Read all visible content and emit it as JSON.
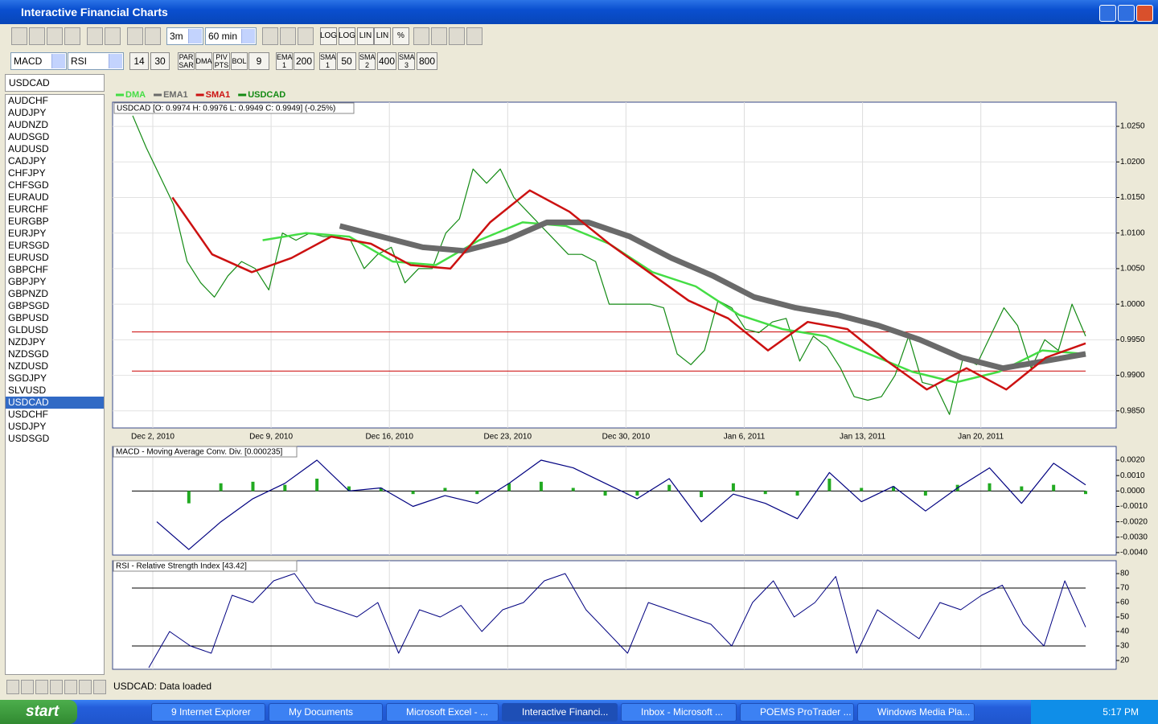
{
  "window": {
    "title": "Interactive Financial Charts"
  },
  "toolbar": {
    "period": "3m",
    "interval": "60 min",
    "icon_labels": [
      "LOG",
      "LOG",
      "LIN",
      "LIN",
      "%"
    ],
    "indicator1": "MACD",
    "indicator2": "RSI",
    "rsi_low": 14,
    "rsi_high": 30,
    "overlays": [
      "PAR SAR",
      "DMA",
      "PIV PTS",
      "BOL"
    ],
    "bol_period": 9,
    "averages": [
      {
        "label": "EMA 1",
        "period": 200
      },
      {
        "label": "SMA 1",
        "period": 50
      },
      {
        "label": "SMA 2",
        "period": 400
      },
      {
        "label": "SMA 3",
        "period": 800
      }
    ]
  },
  "symbols": {
    "current": "USDCAD",
    "list": [
      "AUDCHF",
      "AUDJPY",
      "AUDNZD",
      "AUDSGD",
      "AUDUSD",
      "CADJPY",
      "CHFJPY",
      "CHFSGD",
      "EURAUD",
      "EURCHF",
      "EURGBP",
      "EURJPY",
      "EURSGD",
      "EURUSD",
      "GBPCHF",
      "GBPJPY",
      "GBPNZD",
      "GBPSGD",
      "GBPUSD",
      "GLDUSD",
      "NZDJPY",
      "NZDSGD",
      "NZDUSD",
      "SGDJPY",
      "SLVUSD",
      "USDCAD",
      "USDCHF",
      "USDJPY",
      "USDSGD"
    ]
  },
  "chart_data": [
    {
      "type": "line",
      "subtitle": "USDCAD [O: 0.9974  H: 0.9976  L: 0.9949  C: 0.9949] (-0.25%)",
      "xtick_labels": [
        "Dec 2, 2010",
        "Dec 9, 2010",
        "Dec 16, 2010",
        "Dec 23, 2010",
        "Dec 30, 2010",
        "Jan 6, 2011",
        "Jan 13, 2011",
        "Jan 20, 2011"
      ],
      "ylim": [
        0.9826,
        1.0284
      ],
      "yticks": [
        {
          "value": 0.985,
          "label": "0.9850"
        },
        {
          "value": 0.99,
          "label": "0.9900"
        },
        {
          "value": 0.995,
          "label": "0.9950"
        },
        {
          "value": 1.0,
          "label": "1.0000"
        },
        {
          "value": 1.005,
          "label": "1.0050"
        },
        {
          "value": 1.01,
          "label": "1.0100"
        },
        {
          "value": 1.015,
          "label": "1.0150"
        },
        {
          "value": 1.02,
          "label": "1.0200"
        },
        {
          "value": 1.025,
          "label": "1.0250"
        }
      ],
      "grid": true,
      "hlines": [
        {
          "value": 0.9961,
          "color": "#cc0000"
        },
        {
          "value": 0.9906,
          "color": "#cc0000"
        }
      ],
      "series": [
        {
          "name": "DMA",
          "color": "#44dd44",
          "width": 2.5,
          "values": [
            null,
            null,
            null,
            1.009,
            1.01,
            1.0095,
            1.006,
            1.0055,
            1.009,
            1.0115,
            1.011,
            1.0085,
            1.0045,
            1.0025,
            0.9985,
            0.9965,
            0.9955,
            0.993,
            0.9905,
            0.989,
            0.9905,
            0.9935,
            0.993
          ]
        },
        {
          "name": "EMA1",
          "color": "#6a6a6a",
          "width": 7,
          "values": [
            null,
            null,
            null,
            null,
            null,
            1.011,
            1.0095,
            1.008,
            1.0075,
            1.009,
            1.0115,
            1.0115,
            1.0095,
            1.0065,
            1.004,
            1.001,
            0.9995,
            0.9985,
            0.997,
            0.995,
            0.9925,
            0.991,
            0.992,
            0.993
          ]
        },
        {
          "name": "SMA1",
          "color": "#cc1111",
          "width": 2.5,
          "values": [
            null,
            1.015,
            1.007,
            1.0045,
            1.0065,
            1.0095,
            1.0085,
            1.0055,
            1.005,
            1.0115,
            1.016,
            1.013,
            1.0085,
            1.0045,
            1.0005,
            0.998,
            0.9935,
            0.9975,
            0.9965,
            0.992,
            0.988,
            0.991,
            0.988,
            0.9925,
            0.9945
          ]
        },
        {
          "name": "USDCAD",
          "color": "#138a13",
          "width": 1.2,
          "values": [
            1.0265,
            1.022,
            1.018,
            1.014,
            1.006,
            1.003,
            1.001,
            1.004,
            1.006,
            1.005,
            1.002,
            1.01,
            1.009,
            1.01,
            1.0095,
            1.0095,
            1.009,
            1.005,
            1.007,
            1.008,
            1.003,
            1.005,
            1.005,
            1.01,
            1.012,
            1.019,
            1.017,
            1.019,
            1.015,
            1.013,
            1.011,
            1.009,
            1.007,
            1.007,
            1.006,
            1.0,
            1.0,
            1.0,
            1.0,
            0.9995,
            0.993,
            0.9915,
            0.9935,
            1.0005,
            0.9995,
            0.9965,
            0.996,
            0.9975,
            0.998,
            0.992,
            0.9955,
            0.994,
            0.991,
            0.987,
            0.9865,
            0.987,
            0.99,
            0.9955,
            0.989,
            0.9885,
            0.9845,
            0.9925,
            0.9915,
            0.9955,
            0.9995,
            0.997,
            0.991,
            0.995,
            0.9935,
            1.0,
            0.9955
          ]
        }
      ]
    },
    {
      "type": "macd",
      "title": "MACD - Moving Average Conv. Div. [0.000235]",
      "ylim": [
        -0.00416,
        0.00289
      ],
      "yticks": [
        {
          "value": -0.004,
          "label": "-0.0040"
        },
        {
          "value": -0.003,
          "label": "-0.0030"
        },
        {
          "value": -0.002,
          "label": "-0.0020"
        },
        {
          "value": -0.001,
          "label": "-0.0010"
        },
        {
          "value": 0,
          "label": "0.0000"
        },
        {
          "value": 0.001,
          "label": "0.0010"
        },
        {
          "value": 0.002,
          "label": "0.0020"
        }
      ],
      "hlines": [
        {
          "value": 0,
          "color": "#000000"
        }
      ],
      "histogram": {
        "color": "#22aa22",
        "values": [
          0.0,
          -0.0008,
          0.0005,
          0.0006,
          0.0004,
          0.0008,
          0.0003,
          0.0002,
          -0.0002,
          0.0002,
          -0.0002,
          0.0005,
          0.0006,
          0.0002,
          -0.0003,
          -0.0003,
          0.0004,
          -0.0004,
          0.0005,
          -0.0002,
          -0.0003,
          0.0008,
          0.0002,
          0.0003,
          -0.0003,
          0.0004,
          0.0005,
          0.0003,
          0.0004,
          -0.0002
        ]
      },
      "line": {
        "color": "#000080",
        "values": [
          -0.002,
          -0.0038,
          -0.002,
          -0.0005,
          0.0005,
          0.002,
          0.0,
          0.0002,
          -0.001,
          -0.0003,
          -0.0008,
          0.0005,
          0.002,
          0.0015,
          0.0005,
          -0.0005,
          0.0008,
          -0.002,
          -0.0002,
          -0.0008,
          -0.0018,
          0.0012,
          -0.0007,
          0.0003,
          -0.0013,
          0.0002,
          0.0015,
          -0.0008,
          0.0018,
          0.0004
        ]
      }
    },
    {
      "type": "line",
      "title": "RSI - Relative Strength Index [43.42]",
      "ylim": [
        13.9,
        88.9
      ],
      "yticks": [
        20,
        30,
        40,
        50,
        60,
        70,
        80
      ],
      "hlines": [
        {
          "value": 70,
          "color": "#000000"
        },
        {
          "value": 30,
          "color": "#000000"
        }
      ],
      "series": [
        {
          "color": "#000080",
          "width": 1,
          "values": [
            15,
            40,
            30,
            25,
            65,
            60,
            75,
            80,
            60,
            55,
            50,
            60,
            25,
            55,
            50,
            58,
            40,
            55,
            60,
            75,
            80,
            55,
            40,
            25,
            60,
            55,
            50,
            45,
            30,
            60,
            75,
            50,
            60,
            78,
            25,
            55,
            45,
            35,
            60,
            55,
            65,
            72,
            45,
            30,
            75,
            43
          ]
        }
      ]
    }
  ],
  "status": "USDCAD: Data loaded",
  "taskbar": {
    "start": "start",
    "tasks": [
      "9 Internet Explorer",
      "My Documents",
      "Microsoft Excel - ...",
      "Interactive Financi...",
      "Inbox - Microsoft ...",
      "POEMS ProTrader ...",
      "Windows Media Pla..."
    ],
    "clock": "5:17 PM"
  }
}
